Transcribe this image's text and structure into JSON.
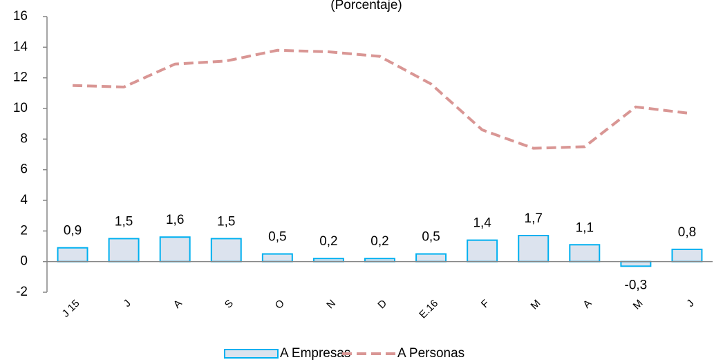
{
  "chart_data": {
    "type": "bar_line",
    "title": "(Porcentaje)",
    "categories": [
      "J 15",
      "J",
      "A",
      "S",
      "O",
      "N",
      "D",
      "E.16",
      "F",
      "M",
      "A",
      "M",
      "J"
    ],
    "series": [
      {
        "name": "A Empresas",
        "type": "bar",
        "color": "#dce3ee",
        "edge_color": "#00b0f0",
        "values": [
          0.9,
          1.5,
          1.6,
          1.5,
          0.5,
          0.2,
          0.2,
          0.5,
          1.4,
          1.7,
          1.1,
          -0.3,
          0.8
        ],
        "value_labels": [
          "0,9",
          "1,5",
          "1,6",
          "1,5",
          "0,5",
          "0,2",
          "0,2",
          "0,5",
          "1,4",
          "1,7",
          "1,1",
          "-0,3",
          "0,8"
        ]
      },
      {
        "name": "A Personas",
        "type": "line",
        "color": "#d99694",
        "dashed": true,
        "values": [
          11.5,
          11.4,
          12.9,
          13.1,
          13.8,
          13.7,
          13.4,
          11.6,
          8.6,
          7.4,
          7.5,
          10.1,
          9.7
        ]
      }
    ],
    "ylim": [
      -2,
      16
    ],
    "yticks": [
      -2,
      0,
      2,
      4,
      6,
      8,
      10,
      12,
      14,
      16
    ],
    "grid": false
  }
}
